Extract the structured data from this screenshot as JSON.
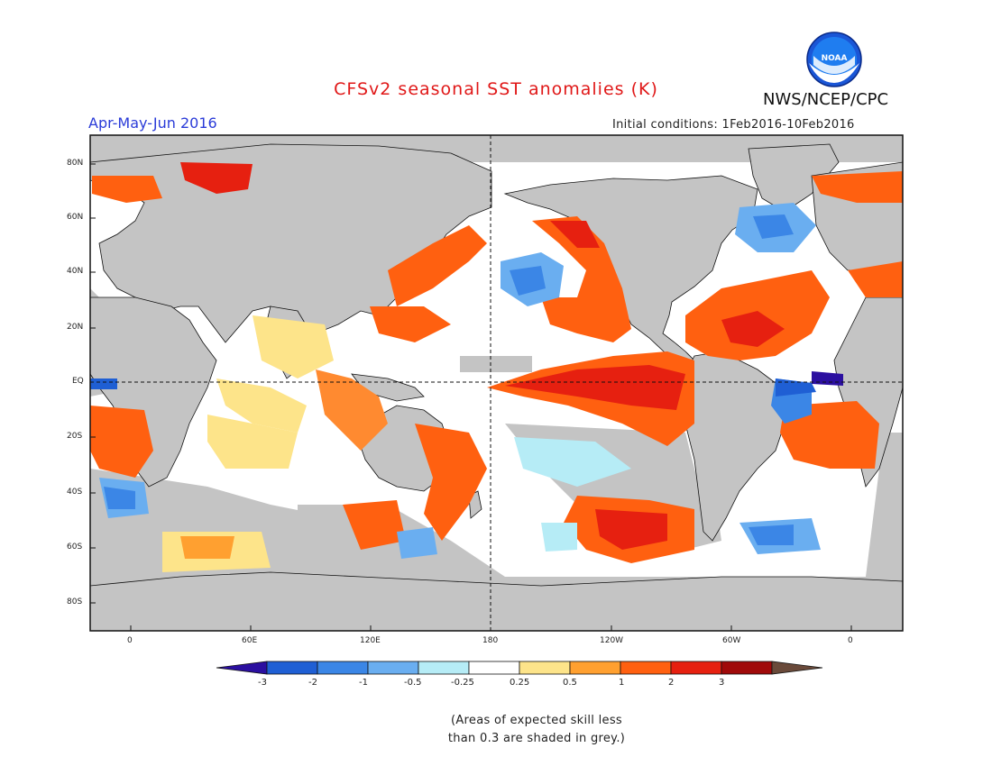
{
  "header": {
    "title": "CFSv2 seasonal SST anomalies (K)",
    "organization": "NWS/NCEP/CPC",
    "logo_text": "NOAA",
    "season": "Apr-May-Jun 2016",
    "initial_conditions": "Initial conditions: 1Feb2016-10Feb2016"
  },
  "map": {
    "lat_labels": [
      "80N",
      "60N",
      "40N",
      "20N",
      "EQ",
      "20S",
      "40S",
      "60S",
      "80S"
    ],
    "lon_labels": [
      "0",
      "60E",
      "120E",
      "180",
      "120W",
      "60W",
      "0"
    ]
  },
  "colorbar": {
    "labels": [
      "-3",
      "-2",
      "-1",
      "-0.5",
      "-0.25",
      "0.25",
      "0.5",
      "1",
      "2",
      "3"
    ],
    "colors": [
      "#2b0fa0",
      "#1f5fd4",
      "#3b86e6",
      "#6aaef0",
      "#b6ecf6",
      "#ffffff",
      "#fde48a",
      "#ffa030",
      "#ff6010",
      "#e62010",
      "#a00a0a",
      "#6a4a3a"
    ]
  },
  "note": {
    "line1": "(Areas of expected skill less",
    "line2": "than 0.3 are shaded in grey.)"
  },
  "colors": {
    "land": "#c4c4c4",
    "ocean_neutral": "#ffffff",
    "grey_skill_mask": "#c4c4c4",
    "title": "#e01818",
    "season_label": "#2a3bd8"
  }
}
